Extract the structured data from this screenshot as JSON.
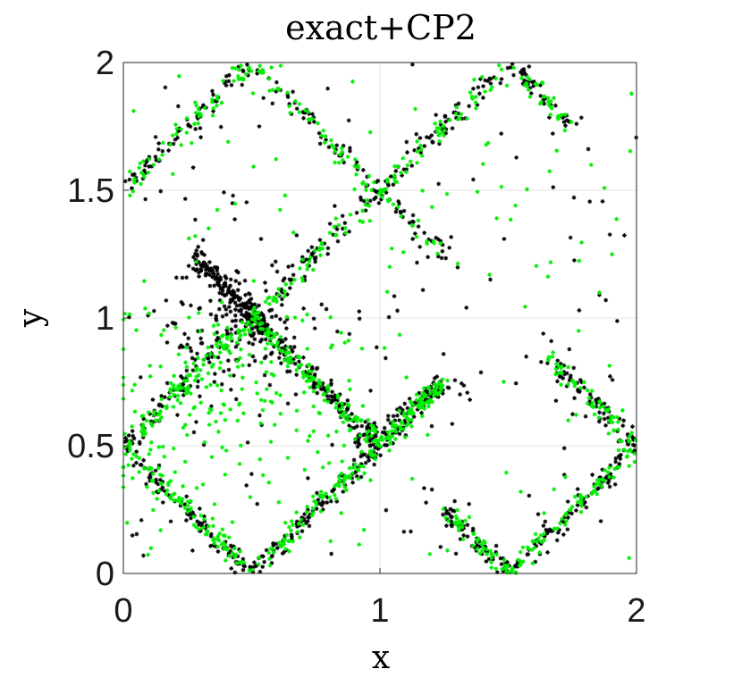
{
  "chart_data": {
    "type": "scatter",
    "title": "exact+CP2",
    "xlabel": "x",
    "ylabel": "y",
    "xlim": [
      0,
      2
    ],
    "ylim": [
      0,
      2
    ],
    "xticks": [
      "0",
      "1",
      "2"
    ],
    "yticks": [
      "0",
      "0.5",
      "1",
      "1.5",
      "2"
    ],
    "grid": true,
    "marker": "*",
    "series": [
      {
        "color": "#000000",
        "segments": [
          {
            "from": [
              0.0,
              1.5
            ],
            "to": [
              0.5,
              2.0
            ],
            "n": 70
          },
          {
            "from": [
              0.5,
              2.0
            ],
            "to": [
              1.25,
              1.25
            ],
            "n": 80
          },
          {
            "from": [
              0.0,
              0.5
            ],
            "to": [
              0.5,
              1.0
            ],
            "n": 80
          },
          {
            "from": [
              0.5,
              1.0
            ],
            "to": [
              1.5,
              2.0
            ],
            "n": 120
          },
          {
            "from": [
              1.5,
              2.0
            ],
            "to": [
              1.75,
              1.75
            ],
            "n": 40
          },
          {
            "from": [
              0.28,
              1.25
            ],
            "to": [
              0.55,
              0.95
            ],
            "n": 160
          },
          {
            "from": [
              0.5,
              1.0
            ],
            "to": [
              1.0,
              0.5
            ],
            "n": 140
          },
          {
            "from": [
              0.0,
              0.5
            ],
            "to": [
              0.5,
              0.0
            ],
            "n": 90
          },
          {
            "from": [
              0.5,
              0.0
            ],
            "to": [
              1.25,
              0.75
            ],
            "n": 160
          },
          {
            "from": [
              1.25,
              0.25
            ],
            "to": [
              1.5,
              0.0
            ],
            "n": 60
          },
          {
            "from": [
              1.5,
              0.0
            ],
            "to": [
              2.0,
              0.5
            ],
            "n": 90
          },
          {
            "from": [
              2.0,
              0.5
            ],
            "to": [
              1.75,
              0.75
            ],
            "n": 50
          },
          {
            "from": [
              1.75,
              0.75
            ],
            "to": [
              1.65,
              0.85
            ],
            "n": 20
          },
          {
            "from": [
              0.9,
              0.5
            ],
            "to": [
              1.25,
              0.75
            ],
            "n": 60
          }
        ],
        "cloud": {
          "center": [
            0.45,
            0.95
          ],
          "spread": [
            0.15,
            0.15
          ],
          "n": 150
        },
        "scatter": 160
      },
      {
        "color": "#00ee00",
        "segments": [
          {
            "from": [
              0.0,
              1.5
            ],
            "to": [
              0.5,
              2.0
            ],
            "n": 60
          },
          {
            "from": [
              0.5,
              2.0
            ],
            "to": [
              1.25,
              1.25
            ],
            "n": 70
          },
          {
            "from": [
              0.0,
              0.5
            ],
            "to": [
              0.5,
              1.0
            ],
            "n": 90
          },
          {
            "from": [
              0.5,
              1.0
            ],
            "to": [
              1.5,
              2.0
            ],
            "n": 110
          },
          {
            "from": [
              1.5,
              2.0
            ],
            "to": [
              1.75,
              1.75
            ],
            "n": 30
          },
          {
            "from": [
              0.5,
              1.0
            ],
            "to": [
              1.0,
              0.5
            ],
            "n": 110
          },
          {
            "from": [
              0.0,
              0.5
            ],
            "to": [
              0.5,
              0.0
            ],
            "n": 90
          },
          {
            "from": [
              0.5,
              0.0
            ],
            "to": [
              1.25,
              0.75
            ],
            "n": 140
          },
          {
            "from": [
              1.25,
              0.25
            ],
            "to": [
              1.5,
              0.0
            ],
            "n": 50
          },
          {
            "from": [
              1.5,
              0.0
            ],
            "to": [
              2.0,
              0.5
            ],
            "n": 80
          },
          {
            "from": [
              2.0,
              0.5
            ],
            "to": [
              1.65,
              0.85
            ],
            "n": 60
          },
          {
            "from": [
              1.05,
              0.55
            ],
            "to": [
              1.25,
              0.75
            ],
            "n": 40
          }
        ],
        "cloud": {
          "center": [
            0.4,
            0.7
          ],
          "spread": [
            0.25,
            0.2
          ],
          "n": 170
        },
        "scatter": 140
      }
    ]
  }
}
